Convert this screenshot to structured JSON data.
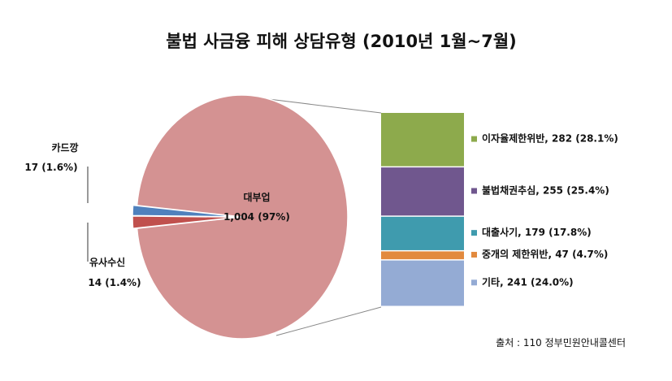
{
  "chart_data": [
    {
      "type": "pie",
      "title": "불법 사금융 피해 상담유형 (2010년 1월~7월)",
      "slices": [
        {
          "label": "대부업",
          "value": 1004,
          "percent": 97,
          "display": "1,004 (97%)",
          "color": "#D49292"
        },
        {
          "label": "카드깡",
          "value": 17,
          "percent": 1.6,
          "display": "17  (1.6%)",
          "color": "#C0504D"
        },
        {
          "label": "유사수신",
          "value": 14,
          "percent": 1.4,
          "display": "14 (1.4%)",
          "color": "#4F81BD"
        }
      ]
    },
    {
      "type": "bar",
      "stacked": true,
      "parent": "대부업",
      "segments": [
        {
          "label": "이자율제한위반",
          "value": 282,
          "percent": 28.1,
          "display": "이자율제한위반, 282 (28.1%)",
          "color": "#8DAA4C"
        },
        {
          "label": "불법채권추심",
          "value": 255,
          "percent": 25.4,
          "display": "불법채권추심, 255  (25.4%)",
          "color": "#70578E"
        },
        {
          "label": "대출사기",
          "value": 179,
          "percent": 17.8,
          "display": "대출사기, 179  (17.8%)",
          "color": "#3F9BAE"
        },
        {
          "label": "중개의 제한위반",
          "value": 47,
          "percent": 4.7,
          "display": "중개의 제한위반, 47 (4.7%)",
          "color": "#E28A3E"
        },
        {
          "label": "기타",
          "value": 241,
          "percent": 24.0,
          "display": "기타, 241  (24.0%)",
          "color": "#94ABD4"
        }
      ]
    }
  ],
  "source": "출처 :  110 정부민원안내콜센터"
}
